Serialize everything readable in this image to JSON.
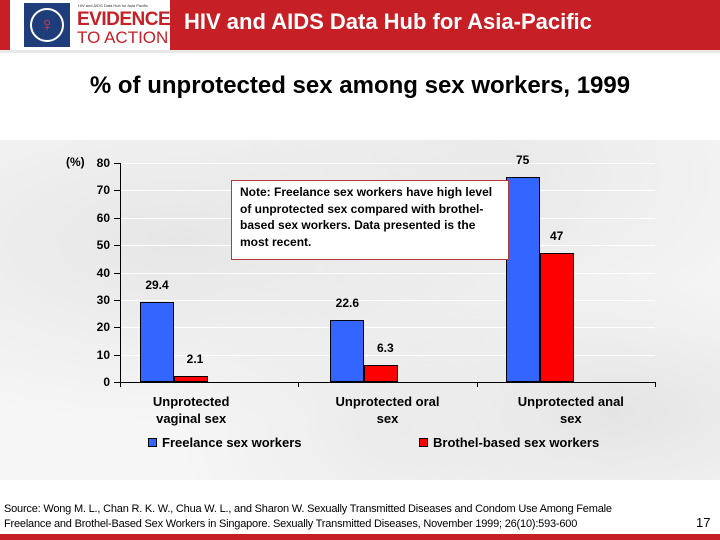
{
  "header": {
    "logo_tagline": "HIV and AIDS Data Hub for Asia Pacific",
    "logo_line1": "EVIDENCE",
    "logo_line2": "TO ACTION",
    "title": "HIV and AIDS Data Hub for Asia-Pacific",
    "brand_color": "#c62026"
  },
  "slide": {
    "title": "% of unprotected sex among sex workers, 1999",
    "note": "Note: Freelance sex workers have high level of unprotected sex compared with brothel-based sex workers. Data presented  is the most recent.",
    "source_line1": "Source: Wong M. L., Chan R. K. W., Chua W. L., and Sharon W.  Sexually Transmitted Diseases and Condom Use Among Female",
    "source_line2": "Freelance and Brothel-Based Sex Workers in Singapore. Sexually Transmitted Diseases, November 1999; 26(10):593-600",
    "page_number": "17"
  },
  "chart_data": {
    "type": "bar",
    "title": "% of unprotected sex among sex workers, 1999",
    "xlabel": "",
    "ylabel": "(%)",
    "ylim": [
      0,
      80
    ],
    "yticks": [
      "0",
      "10",
      "20",
      "30",
      "40",
      "50",
      "60",
      "70",
      "80"
    ],
    "grid": true,
    "legend_position": "bottom",
    "categories": [
      "Unprotected vaginal sex",
      "Unprotected oral sex",
      "Unprotected anal sex"
    ],
    "category_lines": [
      [
        "Unprotected",
        "vaginal sex"
      ],
      [
        "Unprotected oral",
        "sex"
      ],
      [
        "Unprotected anal",
        "sex"
      ]
    ],
    "series": [
      {
        "name": "Freelance sex workers",
        "color": "#3366ff",
        "values": [
          29.4,
          22.6,
          75
        ],
        "labels": [
          "29.4",
          "22.6",
          "75"
        ]
      },
      {
        "name": "Brothel-based sex workers",
        "color": "#ff0000",
        "values": [
          2.1,
          6.3,
          47
        ],
        "labels": [
          "2.1",
          "6.3",
          "47"
        ]
      }
    ],
    "annotation": "Note: Freelance sex workers have high level of unprotected sex compared with brothel-based sex workers. Data presented  is the most recent."
  }
}
